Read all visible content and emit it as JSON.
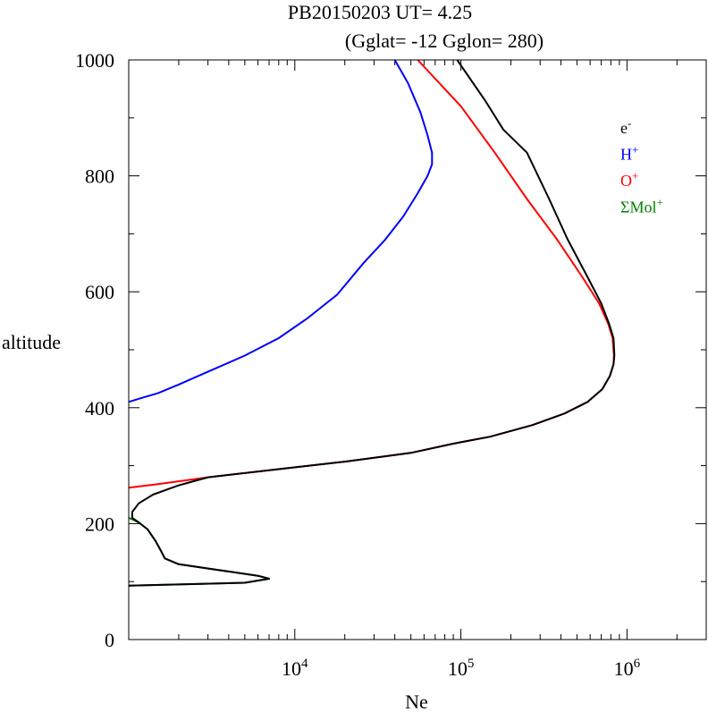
{
  "chart_data": {
    "type": "line",
    "title_line1": "PB20150203   UT=  4.25",
    "title_line2": "(Gglat= -12   Gglon=  280)",
    "xlabel": "Ne",
    "ylabel": "altitude",
    "x_scale": "log",
    "xlim": [
      1000,
      3000000
    ],
    "ylim": [
      0,
      1000
    ],
    "x_ticks": [
      {
        "value": 10000,
        "base": "10",
        "exp": "4"
      },
      {
        "value": 100000,
        "base": "10",
        "exp": "5"
      },
      {
        "value": 1000000,
        "base": "10",
        "exp": "6"
      }
    ],
    "y_ticks": [
      {
        "value": 0,
        "label": "0"
      },
      {
        "value": 200,
        "label": "200"
      },
      {
        "value": 400,
        "label": "400"
      },
      {
        "value": 600,
        "label": "600"
      },
      {
        "value": 800,
        "label": "800"
      },
      {
        "value": 1000,
        "label": "1000"
      }
    ],
    "legend": {
      "placement": "top-right",
      "entries": [
        {
          "base": "e",
          "sup": "-",
          "color": "#000000"
        },
        {
          "base": "H",
          "sup": "+",
          "color": "#0000ff"
        },
        {
          "base": "O",
          "sup": "+",
          "color": "#ff0000"
        },
        {
          "base": "ΣMol",
          "sup": "+",
          "color": "#008000"
        }
      ]
    },
    "series": [
      {
        "id": "h_plus",
        "color": "#0000ff",
        "points": [
          [
            1000,
            410
          ],
          [
            1200,
            417
          ],
          [
            1500,
            425
          ],
          [
            2000,
            440
          ],
          [
            3000,
            462
          ],
          [
            5000,
            490
          ],
          [
            8000,
            520
          ],
          [
            12000,
            555
          ],
          [
            18000,
            595
          ],
          [
            26000,
            650
          ],
          [
            35000,
            690
          ],
          [
            45000,
            730
          ],
          [
            55000,
            770
          ],
          [
            63000,
            800
          ],
          [
            67000,
            820
          ],
          [
            67000,
            840
          ],
          [
            63000,
            870
          ],
          [
            57000,
            910
          ],
          [
            48000,
            960
          ],
          [
            40000,
            1000
          ]
        ]
      },
      {
        "id": "o_plus",
        "color": "#ff0000",
        "points": [
          [
            1000,
            262
          ],
          [
            1500,
            268
          ],
          [
            3000,
            280
          ],
          [
            8000,
            294
          ],
          [
            20000,
            307
          ],
          [
            50000,
            322
          ],
          [
            90000,
            338
          ],
          [
            150000,
            350
          ],
          [
            270000,
            370
          ],
          [
            420000,
            390
          ],
          [
            580000,
            410
          ],
          [
            710000,
            432
          ],
          [
            790000,
            455
          ],
          [
            830000,
            475
          ],
          [
            835000,
            490
          ],
          [
            820000,
            520
          ],
          [
            770000,
            545
          ],
          [
            680000,
            580
          ],
          [
            540000,
            625
          ],
          [
            380000,
            690
          ],
          [
            250000,
            760
          ],
          [
            160000,
            840
          ],
          [
            100000,
            920
          ],
          [
            55000,
            1000
          ]
        ]
      },
      {
        "id": "mol_plus",
        "color": "#008000",
        "points": [
          [
            1000,
            210
          ],
          [
            1150,
            202
          ],
          [
            1300,
            190
          ],
          [
            1450,
            170
          ],
          [
            1550,
            155
          ],
          [
            1650,
            140
          ],
          [
            2000,
            130
          ],
          [
            6000,
            110
          ],
          [
            7000,
            105
          ],
          [
            5000,
            98
          ],
          [
            1000,
            93
          ]
        ]
      },
      {
        "id": "e_minus",
        "color": "#000000",
        "points": [
          [
            1000,
            93
          ],
          [
            5000,
            98
          ],
          [
            7000,
            105
          ],
          [
            6000,
            110
          ],
          [
            2000,
            130
          ],
          [
            1650,
            140
          ],
          [
            1550,
            155
          ],
          [
            1450,
            170
          ],
          [
            1300,
            190
          ],
          [
            1150,
            202
          ],
          [
            1050,
            210
          ],
          [
            1050,
            220
          ],
          [
            1150,
            235
          ],
          [
            1400,
            250
          ],
          [
            2000,
            266
          ],
          [
            3000,
            280
          ],
          [
            8000,
            294
          ],
          [
            20000,
            307
          ],
          [
            50000,
            322
          ],
          [
            90000,
            338
          ],
          [
            150000,
            350
          ],
          [
            270000,
            370
          ],
          [
            420000,
            390
          ],
          [
            580000,
            410
          ],
          [
            710000,
            432
          ],
          [
            790000,
            455
          ],
          [
            830000,
            475
          ],
          [
            840000,
            490
          ],
          [
            830000,
            520
          ],
          [
            780000,
            545
          ],
          [
            700000,
            580
          ],
          [
            580000,
            625
          ],
          [
            440000,
            690
          ],
          [
            340000,
            760
          ],
          [
            250000,
            840
          ],
          [
            180000,
            880
          ],
          [
            140000,
            930
          ],
          [
            95000,
            1000
          ]
        ]
      }
    ]
  }
}
